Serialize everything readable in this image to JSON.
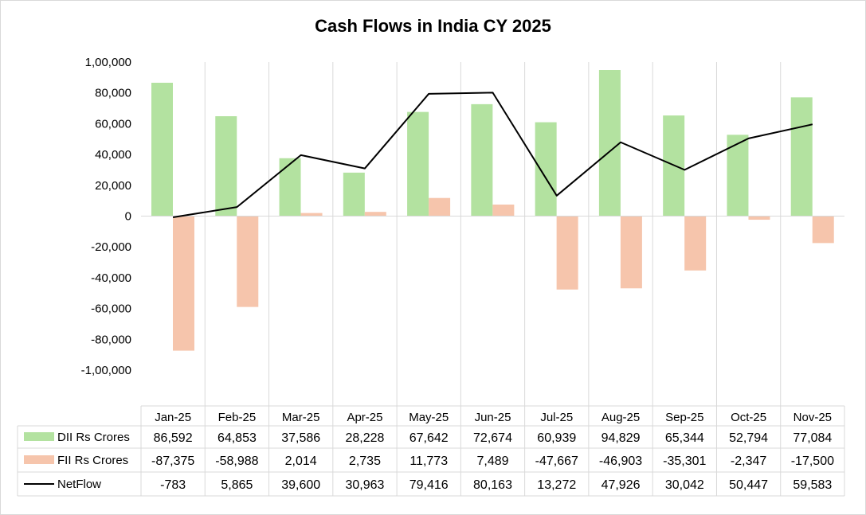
{
  "chart_data": {
    "type": "bar",
    "title": "Cash Flows in India CY 2025",
    "categories": [
      "Jan-25",
      "Feb-25",
      "Mar-25",
      "Apr-25",
      "May-25",
      "Jun-25",
      "Jul-25",
      "Aug-25",
      "Sep-25",
      "Oct-25",
      "Nov-25"
    ],
    "series": [
      {
        "name": "DII Rs Crores",
        "type": "bar",
        "color": "#b3e2a0",
        "values": [
          86592,
          64853,
          37586,
          28228,
          67642,
          72674,
          60939,
          94829,
          65344,
          52794,
          77084
        ]
      },
      {
        "name": "FII Rs Crores",
        "type": "bar",
        "color": "#f6c5ac",
        "values": [
          -87375,
          -58988,
          2014,
          2735,
          11773,
          7489,
          -47667,
          -46903,
          -35301,
          -2347,
          -17500
        ]
      },
      {
        "name": "NetFlow",
        "type": "line",
        "color": "#000000",
        "values": [
          -783,
          5865,
          39600,
          30963,
          79416,
          80163,
          13272,
          47926,
          30042,
          50447,
          59583
        ]
      }
    ],
    "ylim": [
      -100000,
      100000
    ],
    "yticks": [
      100000,
      80000,
      60000,
      40000,
      20000,
      0,
      -20000,
      -40000,
      -60000,
      -80000,
      -100000
    ],
    "ytick_labels": [
      "1,00,000",
      "80,000",
      "60,000",
      "40,000",
      "20,000",
      "0",
      "-20,000",
      "-40,000",
      "-60,000",
      "-80,000",
      "-1,00,000"
    ],
    "grid": "vertical category separators",
    "legend": "data table below chart",
    "table_values": [
      [
        "86,592",
        "64,853",
        "37,586",
        "28,228",
        "67,642",
        "72,674",
        "60,939",
        "94,829",
        "65,344",
        "52,794",
        "77,084"
      ],
      [
        "-87,375",
        "-58,988",
        "2,014",
        "2,735",
        "11,773",
        "7,489",
        "-47,667",
        "-46,903",
        "-35,301",
        "-2,347",
        "-17,500"
      ],
      [
        "-783",
        "5,865",
        "39,600",
        "30,963",
        "79,416",
        "80,163",
        "13,272",
        "47,926",
        "30,042",
        "50,447",
        "59,583"
      ]
    ]
  }
}
